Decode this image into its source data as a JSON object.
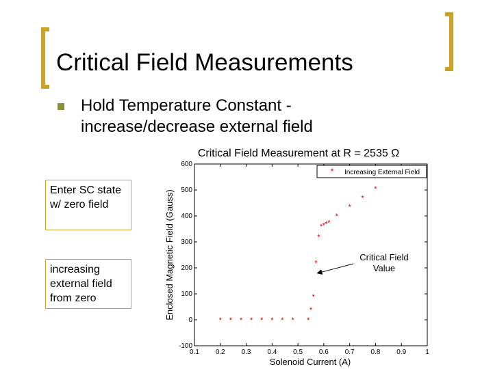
{
  "slide": {
    "title": "Critical Field Measurements",
    "bullet": "Hold Temperature Constant - increase/decrease external field",
    "callouts": [
      "Enter SC state w/ zero field",
      "increasing external field from zero"
    ]
  },
  "colors": {
    "accent": "#c9a227",
    "bullet": "#8a8f3a",
    "series": "#cc0000"
  },
  "chart_data": {
    "type": "scatter",
    "title": "Critical Field Measurement at R = 2535 Ω",
    "xlabel": "Solenoid Current (A)",
    "ylabel": "Enclosed Magnetic Field (Gauss)",
    "xlim": [
      0.1,
      1
    ],
    "ylim": [
      -100,
      600
    ],
    "xticks": [
      "0.1",
      "0.2",
      "0.3",
      "0.4",
      "0.5",
      "0.6",
      "0.7",
      "0.8",
      "0.9",
      "1"
    ],
    "yticks": [
      "-100",
      "0",
      "100",
      "200",
      "300",
      "400",
      "500",
      "600"
    ],
    "grid": false,
    "legend_position": "top-right",
    "annotation": "Critical Field Value",
    "annotation_target": {
      "x": 0.575,
      "y": 190
    },
    "series": [
      {
        "name": "Increasing External Field",
        "x": [
          0.2,
          0.24,
          0.28,
          0.32,
          0.36,
          0.4,
          0.44,
          0.48,
          0.54,
          0.55,
          0.56,
          0.57,
          0.58,
          0.59,
          0.6,
          0.61,
          0.62,
          0.65,
          0.7,
          0.75,
          0.8
        ],
        "y": [
          0,
          0,
          0,
          0,
          0,
          0,
          0,
          0,
          0,
          40,
          90,
          220,
          320,
          360,
          365,
          370,
          375,
          400,
          435,
          470,
          505
        ]
      }
    ]
  }
}
